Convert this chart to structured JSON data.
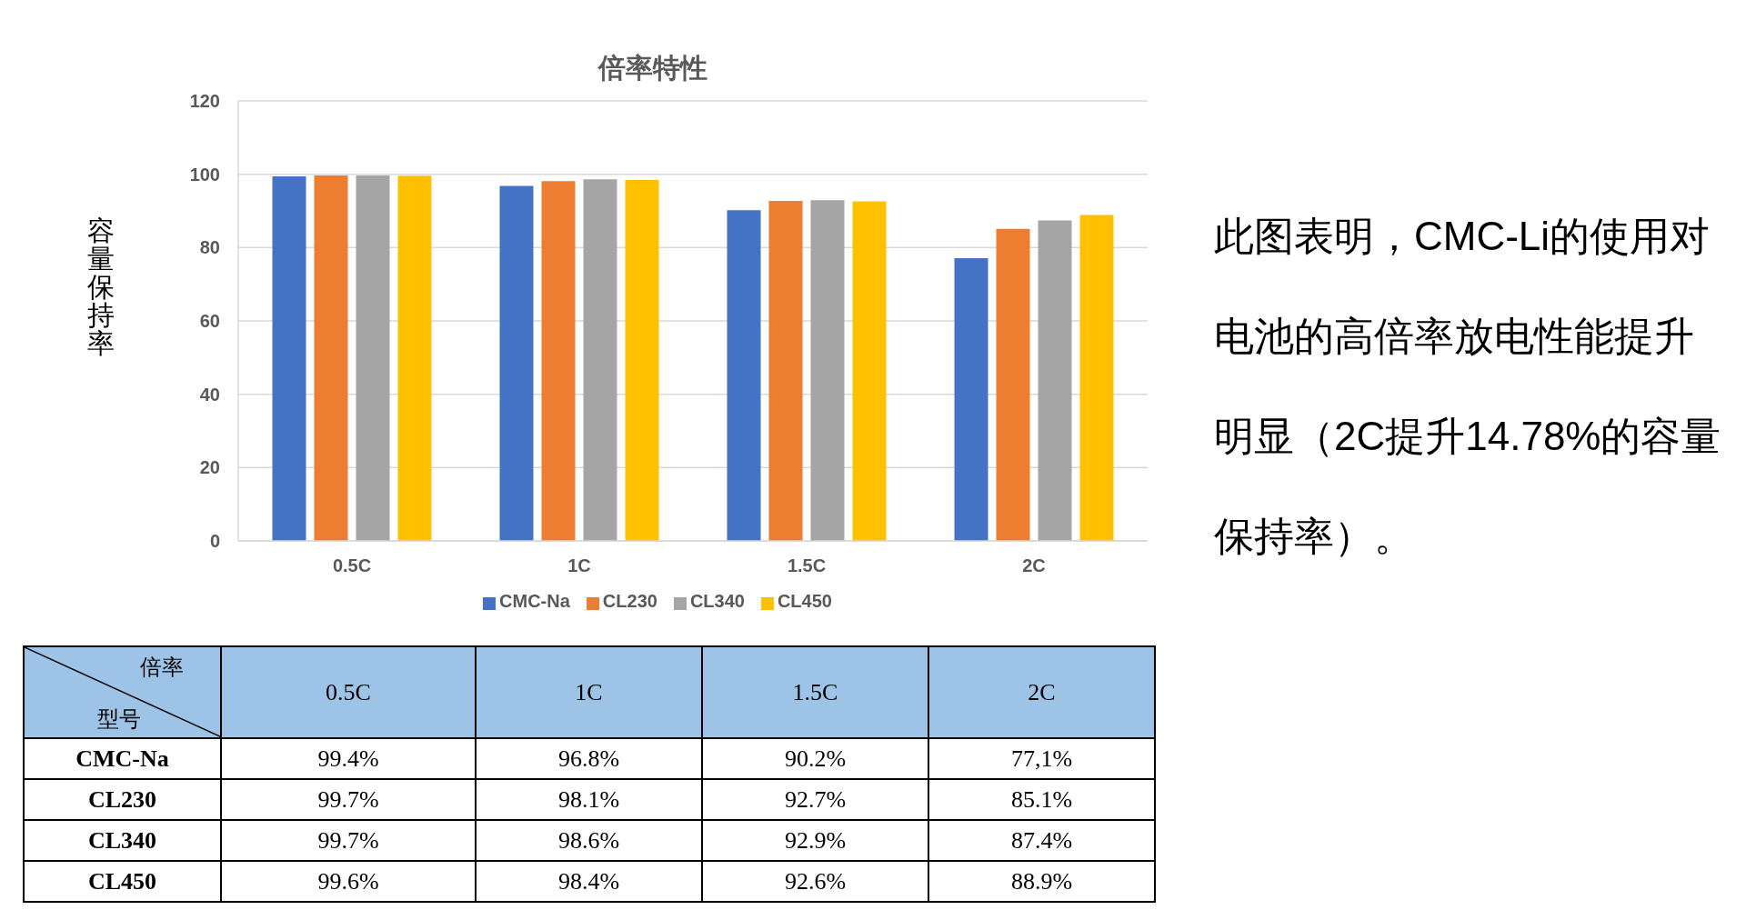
{
  "chart_data": {
    "type": "bar",
    "title": "倍率特性",
    "ylabel": "容量保持率",
    "categories": [
      "0.5C",
      "1C",
      "1.5C",
      "2C"
    ],
    "series": [
      {
        "name": "CMC-Na",
        "color": "#4472c4",
        "values": [
          99.4,
          96.8,
          90.2,
          77.1
        ],
        "value_labels": [
          "99.4%",
          "96.8%",
          "90.2%",
          "77,1%"
        ]
      },
      {
        "name": "CL230",
        "color": "#ed7d31",
        "values": [
          99.7,
          98.1,
          92.7,
          85.1
        ],
        "value_labels": [
          "99.7%",
          "98.1%",
          "92.7%",
          "85.1%"
        ]
      },
      {
        "name": "CL340",
        "color": "#a5a5a5",
        "values": [
          99.7,
          98.6,
          92.9,
          87.4
        ],
        "value_labels": [
          "99.7%",
          "98.6%",
          "92.9%",
          "87.4%"
        ]
      },
      {
        "name": "CL450",
        "color": "#ffc000",
        "values": [
          99.6,
          98.4,
          92.6,
          88.9
        ],
        "value_labels": [
          "99.6%",
          "98.4%",
          "92.6%",
          "88.9%"
        ]
      }
    ],
    "ylim": [
      0,
      120
    ],
    "yticks": [
      0,
      20,
      40,
      60,
      80,
      100,
      120
    ],
    "grid": "y",
    "legend": "bottom",
    "annotations": [
      "倍率",
      "型号",
      "此图表明，CMC-Li的使用对电池的高倍率放电性能提升明显（2C提升14.78%的容量保持率）。"
    ]
  }
}
